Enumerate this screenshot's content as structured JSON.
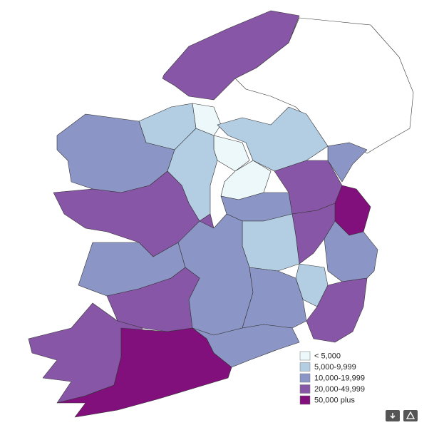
{
  "legend": {
    "items": [
      {
        "label": "< 5,000",
        "color": "#edf8fb"
      },
      {
        "label": "5,000-9,999",
        "color": "#b3cde3"
      },
      {
        "label": "10,000-19,999",
        "color": "#8c96c6"
      },
      {
        "label": "20,000-49,999",
        "color": "#8856a7"
      },
      {
        "label": "50,000 plus",
        "color": "#810f7c"
      }
    ]
  }
}
